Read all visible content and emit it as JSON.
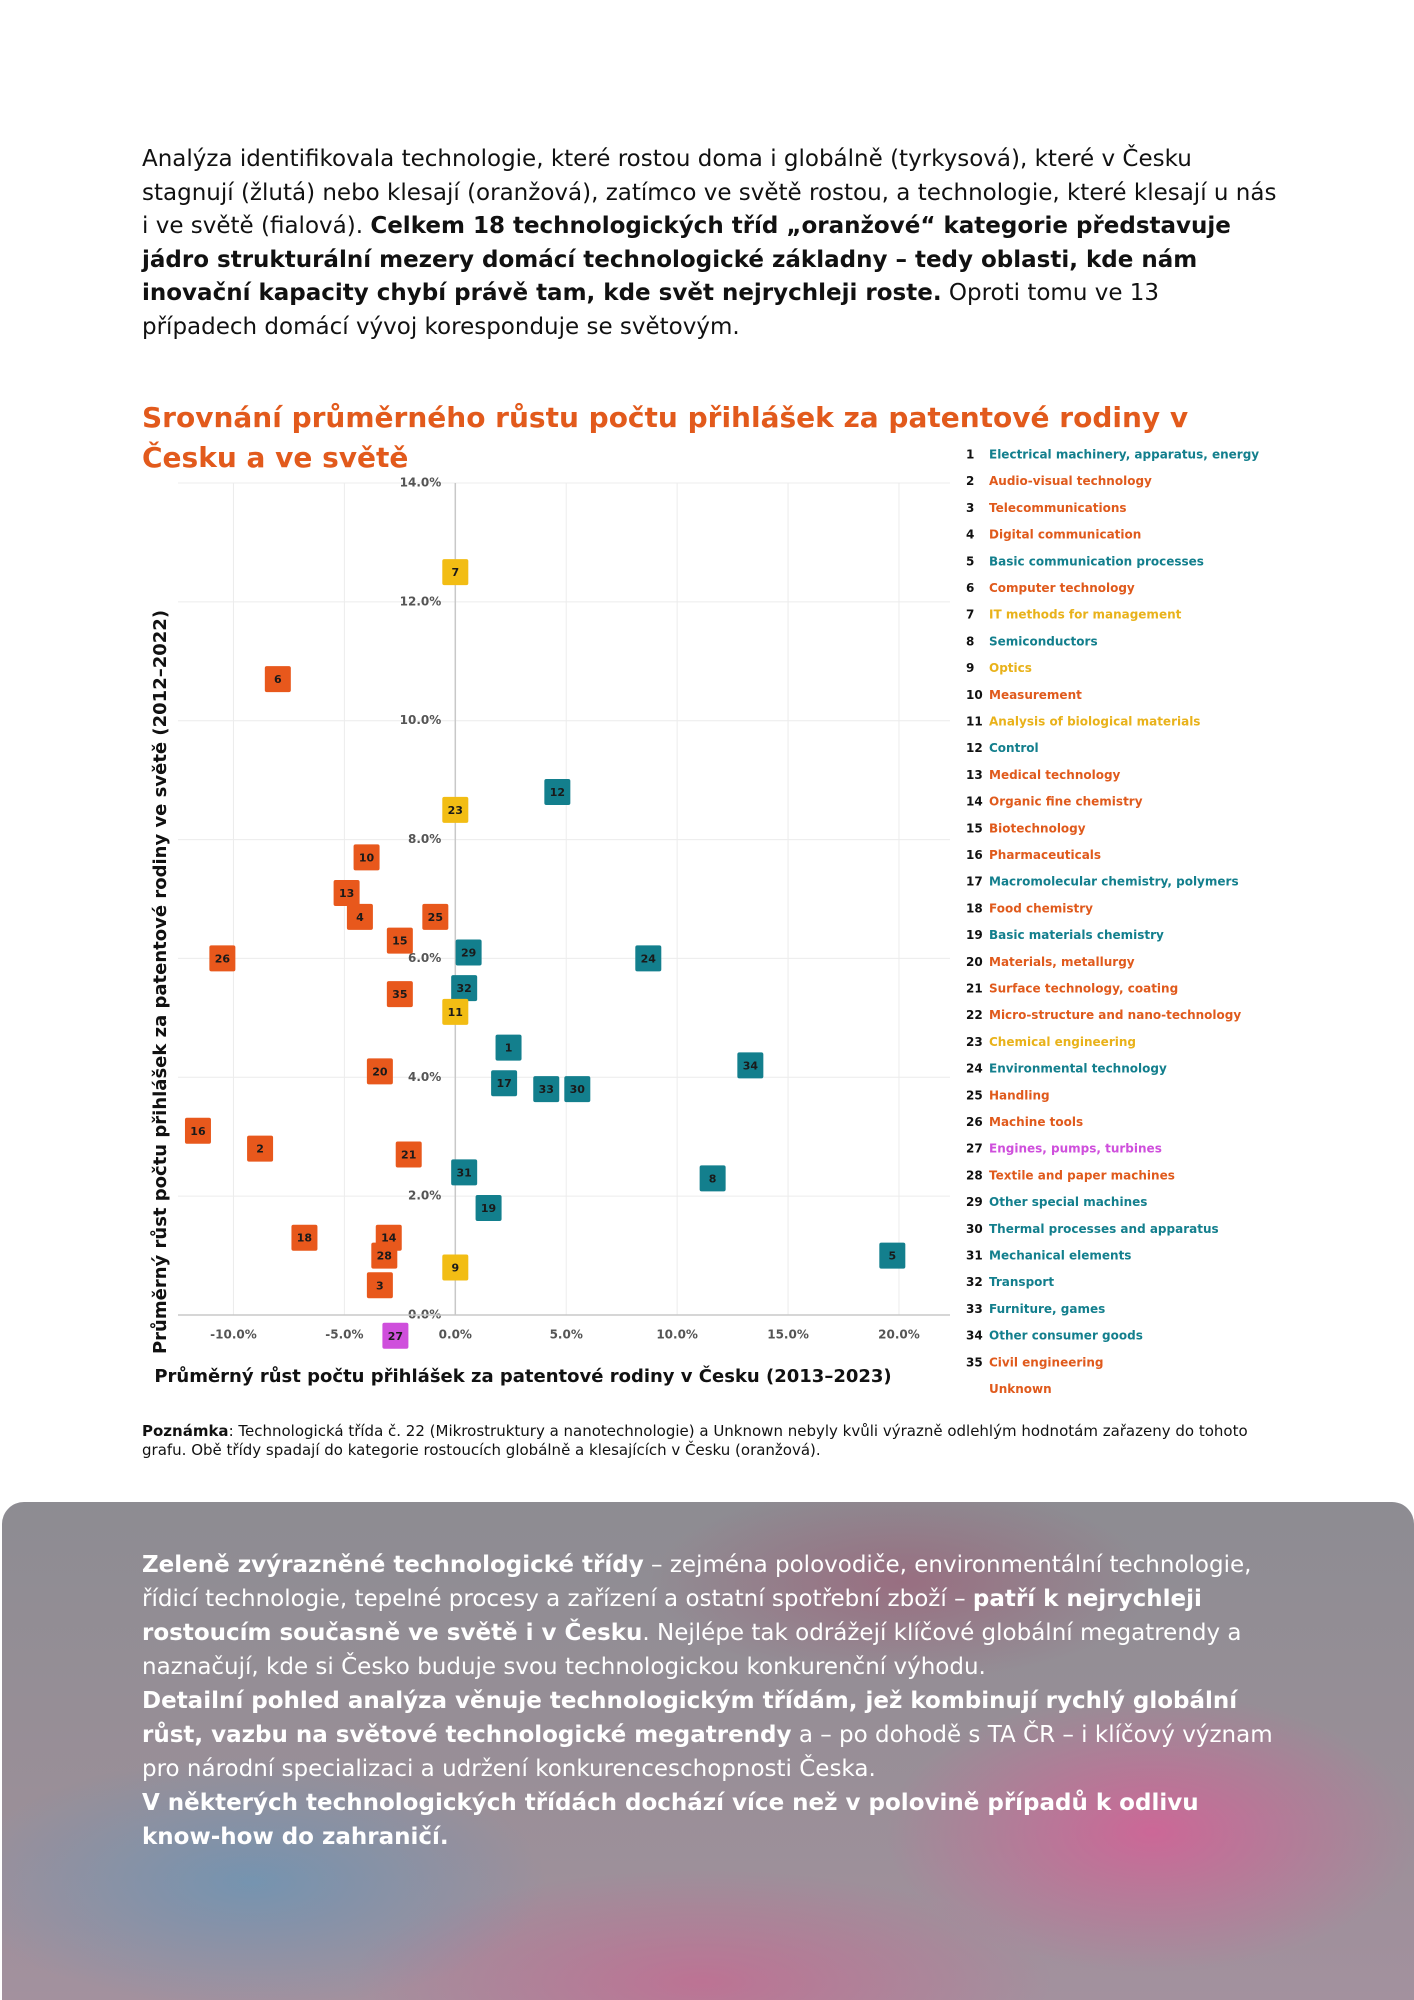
{
  "intro": [
    {
      "text": "Analýza identifikovala technologie, které rostou doma i globálně (tyrkysová), které v Česku stagnují (žlutá) nebo klesají (oranžová), zatímco ve světě rostou, a technologie, které klesají u nás i ve světě (fialová). ",
      "bold": false
    },
    {
      "text": "Celkem 18 technologických tříd „oranžové“ kategorie představuje jádro strukturální mezery domácí technologické základny – tedy oblasti, kde nám inovační kapacity chybí právě tam, kde svět nejrychleji roste.",
      "bold": true
    },
    {
      "text": " Oproti tomu ve 13 případech domácí vývoj koresponduje se světovým.",
      "bold": false
    }
  ],
  "chart_data": {
    "type": "scatter",
    "title": "Srovnání průměrného růstu počtu přihlášek za patentové rodiny v Česku a ve světě",
    "x_label": "Průměrný růst počtu přihlášek za patentové rodiny v Česku (2013–2023)",
    "y_label": "Průměrný růst počtu přihlášek za patentové rodiny ve světě (2012–2022)",
    "xlim": [
      -12.5,
      22.3
    ],
    "ylim": [
      0,
      14
    ],
    "xticks": [
      {
        "value": -10,
        "label": "-10.0%"
      },
      {
        "value": -5,
        "label": "-5.0%"
      },
      {
        "value": 0,
        "label": "0.0%"
      },
      {
        "value": 5,
        "label": "5.0%"
      },
      {
        "value": 10,
        "label": "10.0%"
      },
      {
        "value": 15,
        "label": "15.0%"
      },
      {
        "value": 20,
        "label": "20.0%"
      }
    ],
    "yticks": [
      {
        "value": 0,
        "label": "0.0%"
      },
      {
        "value": 2,
        "label": "2.0%"
      },
      {
        "value": 4,
        "label": "4.0%"
      },
      {
        "value": 6,
        "label": "6.0%"
      },
      {
        "value": 8,
        "label": "8.0%"
      },
      {
        "value": 10,
        "label": "10.0%"
      },
      {
        "value": 12,
        "label": "12.0%"
      },
      {
        "value": 14,
        "label": "14.0%"
      }
    ],
    "grid": true,
    "points": [
      {
        "label": "7",
        "x": 0,
        "y": 12.5,
        "color": "#f2bd14"
      },
      {
        "label": "6",
        "x": -8.0,
        "y": 10.7,
        "color": "#e8581c"
      },
      {
        "label": "12",
        "x": 4.6,
        "y": 8.8,
        "color": "#137f8d"
      },
      {
        "label": "23",
        "x": 0,
        "y": 8.5,
        "color": "#f2bd14"
      },
      {
        "label": "10",
        "x": -4.0,
        "y": 7.7,
        "color": "#e8581c"
      },
      {
        "label": "13",
        "x": -4.9,
        "y": 7.1,
        "color": "#e8581c"
      },
      {
        "label": "4",
        "x": -4.3,
        "y": 6.7,
        "color": "#e8581c"
      },
      {
        "label": "25",
        "x": -0.9,
        "y": 6.7,
        "color": "#e8581c"
      },
      {
        "label": "15",
        "x": -2.5,
        "y": 6.3,
        "color": "#e8581c"
      },
      {
        "label": "26",
        "x": -10.5,
        "y": 6.0,
        "color": "#e8581c"
      },
      {
        "label": "29",
        "x": 0.6,
        "y": 6.1,
        "color": "#137f8d"
      },
      {
        "label": "24",
        "x": 8.7,
        "y": 6.0,
        "color": "#137f8d"
      },
      {
        "label": "32",
        "x": 0.4,
        "y": 5.5,
        "color": "#137f8d"
      },
      {
        "label": "35",
        "x": -2.5,
        "y": 5.4,
        "color": "#e8581c"
      },
      {
        "label": "11",
        "x": 0,
        "y": 5.1,
        "color": "#f2bd14"
      },
      {
        "label": "1",
        "x": 2.4,
        "y": 4.5,
        "color": "#137f8d"
      },
      {
        "label": "34",
        "x": 13.3,
        "y": 4.2,
        "color": "#137f8d"
      },
      {
        "label": "20",
        "x": -3.4,
        "y": 4.1,
        "color": "#e8581c"
      },
      {
        "label": "17",
        "x": 2.2,
        "y": 3.9,
        "color": "#137f8d"
      },
      {
        "label": "33",
        "x": 4.1,
        "y": 3.8,
        "color": "#137f8d"
      },
      {
        "label": "30",
        "x": 5.5,
        "y": 3.8,
        "color": "#137f8d"
      },
      {
        "label": "16",
        "x": -11.6,
        "y": 3.1,
        "color": "#e8581c"
      },
      {
        "label": "2",
        "x": -8.8,
        "y": 2.8,
        "color": "#e8581c"
      },
      {
        "label": "21",
        "x": -2.1,
        "y": 2.7,
        "color": "#e8581c"
      },
      {
        "label": "31",
        "x": 0.4,
        "y": 2.4,
        "color": "#137f8d"
      },
      {
        "label": "8",
        "x": 11.6,
        "y": 2.3,
        "color": "#137f8d"
      },
      {
        "label": "19",
        "x": 1.5,
        "y": 1.8,
        "color": "#137f8d"
      },
      {
        "label": "18",
        "x": -6.8,
        "y": 1.3,
        "color": "#e8581c"
      },
      {
        "label": "14",
        "x": -3.0,
        "y": 1.3,
        "color": "#e8581c"
      },
      {
        "label": "28",
        "x": -3.2,
        "y": 1.0,
        "color": "#e8581c"
      },
      {
        "label": "5",
        "x": 19.7,
        "y": 1.0,
        "color": "#137f8d"
      },
      {
        "label": "9",
        "x": 0,
        "y": 0.8,
        "color": "#f2bd14"
      },
      {
        "label": "3",
        "x": -3.4,
        "y": 0.5,
        "color": "#e8581c"
      },
      {
        "label": "27",
        "x": -2.7,
        "y": -0.35,
        "color": "#cf4fdc"
      }
    ],
    "legend": [
      {
        "number": "1",
        "name": "Electrical machinery, apparatus, energy",
        "color": "#137f8d"
      },
      {
        "number": "2",
        "name": "Audio-visual technology",
        "color": "#e05a1c"
      },
      {
        "number": "3",
        "name": "Telecommunications",
        "color": "#e05a1c"
      },
      {
        "number": "4",
        "name": "Digital communication",
        "color": "#e05a1c"
      },
      {
        "number": "5",
        "name": "Basic communication processes",
        "color": "#137f8d"
      },
      {
        "number": "6",
        "name": "Computer technology",
        "color": "#e05a1c"
      },
      {
        "number": "7",
        "name": "IT methods for management",
        "color": "#e9b21a"
      },
      {
        "number": "8",
        "name": "Semiconductors",
        "color": "#137f8d"
      },
      {
        "number": "9",
        "name": "Optics",
        "color": "#e9b21a"
      },
      {
        "number": "10",
        "name": "Measurement",
        "color": "#e05a1c"
      },
      {
        "number": "11",
        "name": "Analysis of biological materials",
        "color": "#e9b21a"
      },
      {
        "number": "12",
        "name": "Control",
        "color": "#137f8d"
      },
      {
        "number": "13",
        "name": "Medical technology",
        "color": "#e05a1c"
      },
      {
        "number": "14",
        "name": "Organic fine chemistry",
        "color": "#e05a1c"
      },
      {
        "number": "15",
        "name": "Biotechnology",
        "color": "#e05a1c"
      },
      {
        "number": "16",
        "name": "Pharmaceuticals",
        "color": "#e05a1c"
      },
      {
        "number": "17",
        "name": "Macromolecular chemistry, polymers",
        "color": "#137f8d"
      },
      {
        "number": "18",
        "name": "Food chemistry",
        "color": "#e05a1c"
      },
      {
        "number": "19",
        "name": "Basic materials chemistry",
        "color": "#137f8d"
      },
      {
        "number": "20",
        "name": "Materials, metallurgy",
        "color": "#e05a1c"
      },
      {
        "number": "21",
        "name": "Surface technology, coating",
        "color": "#e05a1c"
      },
      {
        "number": "22",
        "name": "Micro-structure and nano-technology",
        "color": "#e05a1c"
      },
      {
        "number": "23",
        "name": "Chemical engineering",
        "color": "#e9b21a"
      },
      {
        "number": "24",
        "name": "Environmental technology",
        "color": "#137f8d"
      },
      {
        "number": "25",
        "name": "Handling",
        "color": "#e05a1c"
      },
      {
        "number": "26",
        "name": "Machine tools",
        "color": "#e05a1c"
      },
      {
        "number": "27",
        "name": "Engines, pumps, turbines",
        "color": "#cf4fdc"
      },
      {
        "number": "28",
        "name": "Textile and paper machines",
        "color": "#e05a1c"
      },
      {
        "number": "29",
        "name": "Other special machines",
        "color": "#137f8d"
      },
      {
        "number": "30",
        "name": "Thermal processes and apparatus",
        "color": "#137f8d"
      },
      {
        "number": "31",
        "name": "Mechanical elements",
        "color": "#137f8d"
      },
      {
        "number": "32",
        "name": "Transport",
        "color": "#137f8d"
      },
      {
        "number": "33",
        "name": "Furniture, games",
        "color": "#137f8d"
      },
      {
        "number": "34",
        "name": "Other consumer goods",
        "color": "#137f8d"
      },
      {
        "number": "35",
        "name": "Civil engineering",
        "color": "#e05a1c"
      },
      {
        "name": "Unknown",
        "color": "#e05a1c"
      }
    ]
  },
  "note": [
    {
      "text": "Poznámka",
      "bold": true
    },
    {
      "text": ": Technologická třída č. 22 (Mikrostruktury a nanotechnologie) a Unknown nebyly kvůli výrazně odlehlým hodnotám zařazeny do tohoto grafu. Obě třídy spadají do kategorie rostoucích globálně a klesajících v Česku (oranžová).",
      "bold": false
    }
  ],
  "bottom_paragraphs": [
    {
      "segments": [
        {
          "text": "Zeleně zvýrazněné technologické třídy",
          "bold": true
        },
        {
          "text": " – zejména polovodiče, environmentální technologie, řídicí technologie, tepelné procesy a zařízení a ostatní spotřební zboží – ",
          "bold": false
        },
        {
          "text": "patří k nejrychleji rostoucím současně ve světě i v Česku",
          "bold": true
        },
        {
          "text": ". Nejlépe tak odrážejí klíčové globální megatrendy a naznačují, kde si Česko buduje svou technologickou konkurenční výhodu.",
          "bold": false
        }
      ]
    },
    {
      "segments": [
        {
          "text": "Detailní pohled analýza věnuje technologickým třídám, jež kombinují rychlý globální růst, vazbu na světové technologické megatrendy",
          "bold": true
        },
        {
          "text": " a – po dohodě s TA ČR – i klíčový význam pro národní specializaci a udržení konkurenceschopnosti Česka.",
          "bold": false
        }
      ]
    },
    {
      "segments": [
        {
          "text": "V některých technologických třídách dochází více než v polovině případů k odlivu know-how do zahraničí.",
          "bold": true
        }
      ]
    }
  ]
}
